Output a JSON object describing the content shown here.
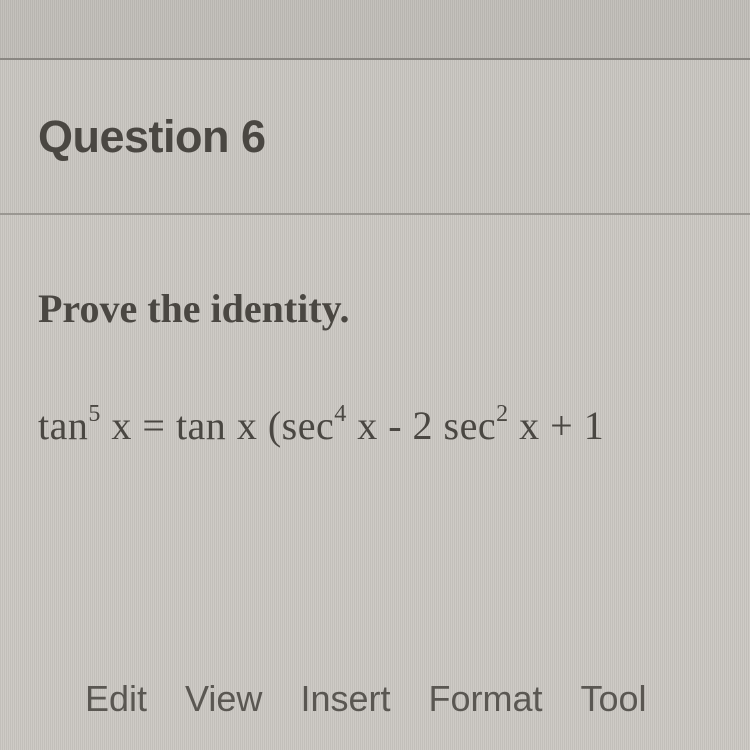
{
  "header": {
    "title": "Question 6"
  },
  "content": {
    "prompt": "Prove the identity.",
    "equation": {
      "lhs_func": "tan",
      "lhs_exp": "5",
      "lhs_var": " x",
      "eq": " = ",
      "r1_func": "tan",
      "r1_var": " x ",
      "lparen": "(",
      "r2_func": "sec",
      "r2_exp": "4",
      "r2_var": " x ",
      "minus": "- ",
      "r3_coef": "2 ",
      "r3_func": "sec",
      "r3_exp": "2",
      "r3_var": " x ",
      "plus": "+ ",
      "r4": "1"
    }
  },
  "toolbar": {
    "items": [
      "Edit",
      "View",
      "Insert",
      "Format",
      "Tool"
    ]
  },
  "style": {
    "background_stripe_a": "#b8b5b0",
    "background_stripe_b": "#c4c1bc",
    "header_stripe_a": "#c0bdb8",
    "header_stripe_b": "#ccc9c4",
    "content_stripe_a": "#c2bfba",
    "content_stripe_b": "#cecbc6",
    "title_color": "#4a4742",
    "text_color": "#4a4742",
    "toolbar_color": "#5a5752",
    "border_color": "#8a8782",
    "title_fontsize": 45,
    "prompt_fontsize": 40,
    "equation_fontsize": 40,
    "toolbar_fontsize": 36
  }
}
